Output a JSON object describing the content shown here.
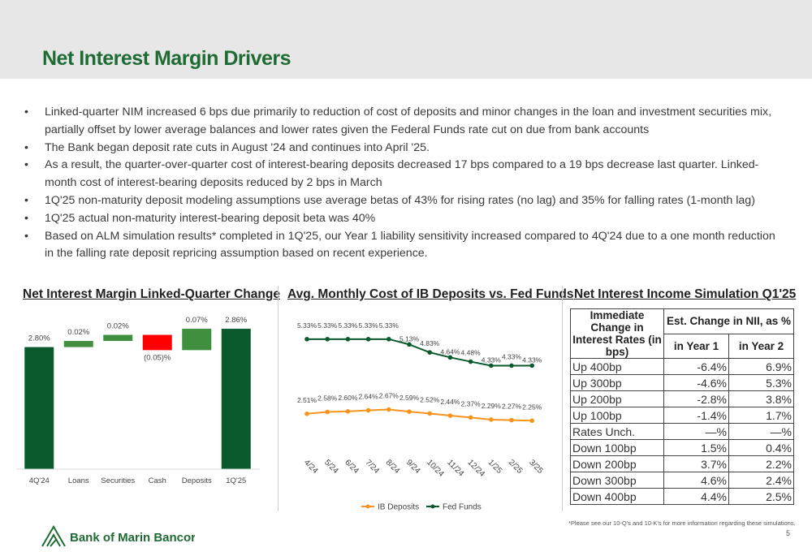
{
  "title": "Net Interest Margin Drivers",
  "bullets": [
    "Linked-quarter NIM increased 6 bps due primarily to reduction of cost of deposits and minor changes in the loan and investment securities mix, partially offset by lower average balances and lower rates given the Federal Funds rate cut on due from bank accounts",
    "The Bank began deposit rate cuts in August '24 and continues into April '25.",
    "As a result, the quarter-over-quarter cost of interest-bearing deposits decreased 17 bps compared to a 19 bps decrease last quarter.   Linked-month cost of interest-bearing deposits reduced by 2 bps in March",
    "1Q'25 non-maturity deposit modeling assumptions use average betas of 43% for rising rates (no lag) and 35% for falling rates (1-month lag)",
    "1Q'25 actual non-maturity interest-bearing deposit beta was 40%",
    "Based on ALM simulation results* completed in 1Q'25, our Year 1 liability sensitivity increased compared to 4Q'24 due to a one month reduction in the falling rate deposit repricing assumption based on recent experience."
  ],
  "chart_data": [
    {
      "type": "waterfall",
      "title": "Net Interest Margin Linked-Quarter Change",
      "categories": [
        "4Q'24",
        "Loans",
        "Securities",
        "Cash",
        "Deposits",
        "1Q'25"
      ],
      "values": [
        2.8,
        0.02,
        0.02,
        -0.05,
        0.07,
        2.86
      ],
      "value_labels": [
        "2.80%",
        "0.02%",
        "0.02%",
        "(0.05)%",
        "0.07%",
        "2.86%"
      ],
      "total_indices": [
        0,
        5
      ],
      "colors": {
        "total": "#0b5a2e",
        "increase": "#3f8f3f",
        "decrease": "#ff0000"
      },
      "ylim": [
        2.4,
        2.9
      ]
    },
    {
      "type": "line",
      "title": "Avg. Monthly Cost of IB Deposits vs. Fed Funds",
      "categories": [
        "4/24",
        "5/24",
        "6/24",
        "7/24",
        "8/24",
        "9/24",
        "10/24",
        "11/24",
        "12/24",
        "1/25",
        "2/25",
        "3/25"
      ],
      "series": [
        {
          "name": "IB Deposits",
          "color": "#f7941d",
          "values": [
            2.51,
            2.58,
            2.6,
            2.64,
            2.67,
            2.59,
            2.52,
            2.44,
            2.37,
            2.29,
            2.27,
            2.25
          ],
          "value_labels": [
            "2.51%",
            "2.58%",
            "2.60%",
            "2.64%",
            "2.67%",
            "2.59%",
            "2.52%",
            "2.44%",
            "2.37%",
            "2.29%",
            "2.27%",
            "2.25%"
          ]
        },
        {
          "name": "Fed Funds",
          "color": "#0b5a2e",
          "values": [
            5.33,
            5.33,
            5.33,
            5.33,
            5.33,
            5.13,
            4.83,
            4.64,
            4.48,
            4.33,
            4.33,
            4.33
          ],
          "value_labels": [
            "5.33%",
            "5.33%",
            "5.33%",
            "5.33%",
            "5.33%",
            "5.13%",
            "4.83%",
            "4.64%",
            "4.48%",
            "4.33%",
            "4.33%",
            "4.33%"
          ]
        }
      ],
      "ylim": [
        1,
        6
      ],
      "legend": "bottom"
    }
  ],
  "table": {
    "title": "Net Interest Income Simulation Q1'25",
    "header": [
      "Immediate Change in Interest Rates (in bps)",
      "Est. Change in NII, as %",
      "in Year 1",
      "in Year 2"
    ],
    "rows": [
      [
        "Up 400bp",
        "-6.4%",
        "6.9%"
      ],
      [
        "Up 300bp",
        "-4.6%",
        "5.3%"
      ],
      [
        "Up 200bp",
        "-2.8%",
        "3.8%"
      ],
      [
        "Up 100bp",
        "-1.4%",
        "1.7%"
      ],
      [
        "Rates Unch.",
        "—%",
        "—%"
      ],
      [
        "Down 100bp",
        "1.5%",
        "0.4%"
      ],
      [
        "Down 200bp",
        "3.7%",
        "2.2%"
      ],
      [
        "Down 300bp",
        "4.6%",
        "2.4%"
      ],
      [
        "Down 400bp",
        "4.4%",
        "2.5%"
      ]
    ]
  },
  "footnote": "*Please see our 10-Q's and 10-K's for more information regarding these simulations.",
  "logo": "Bank of Marin Bancorp",
  "page_number": "5"
}
